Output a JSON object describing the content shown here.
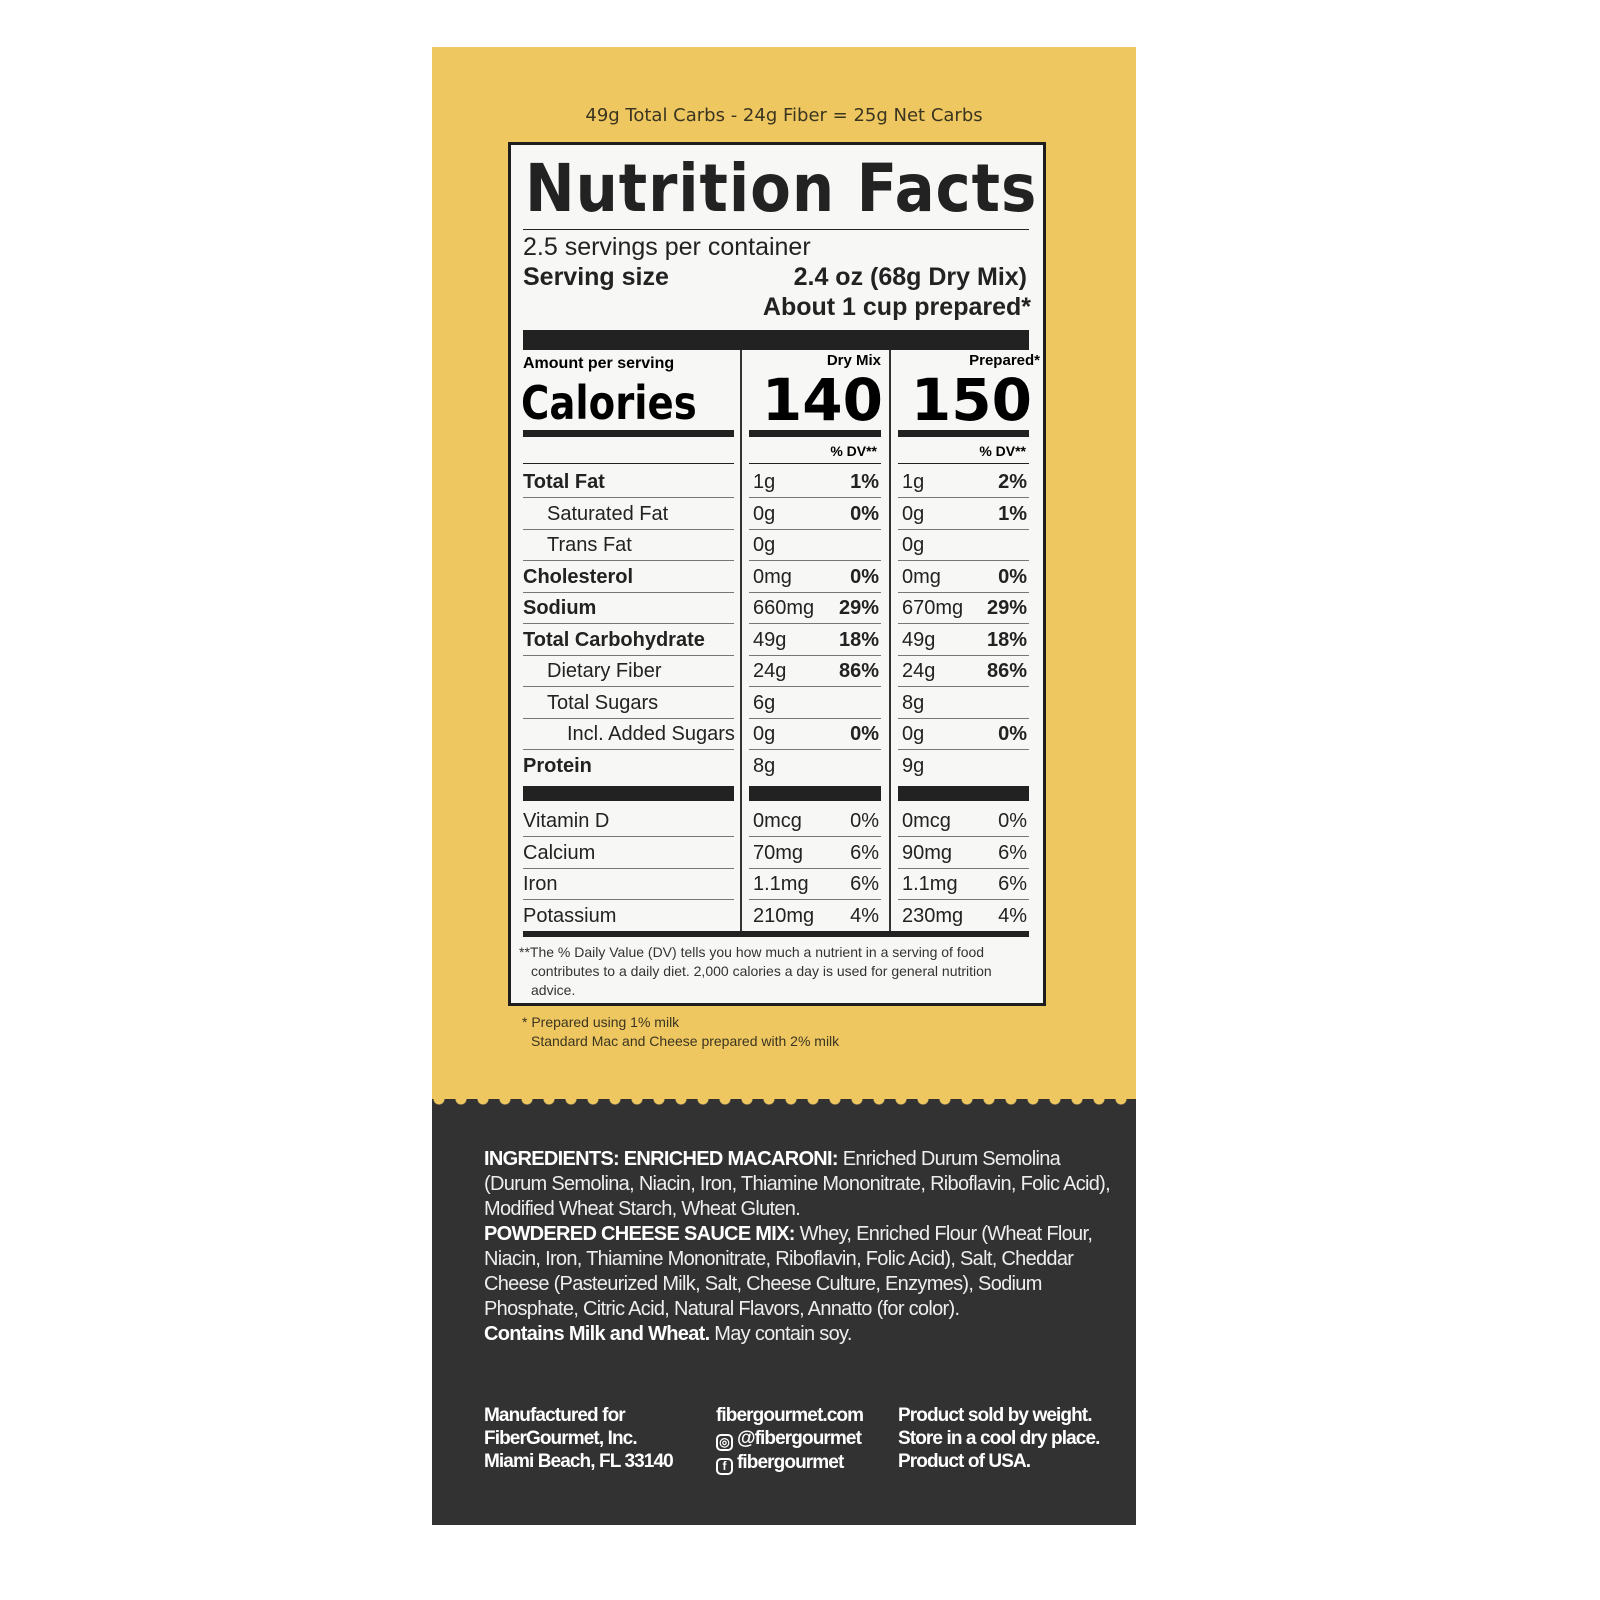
{
  "net_carbs": "49g Total Carbs - 24g Fiber = 25g Net Carbs",
  "nutrition": {
    "title": "Nutrition Facts",
    "servings": "2.5 servings per container",
    "serving_size_label": "Serving size",
    "serving_size_value": "2.4 oz (68g Dry Mix)",
    "serving_size_value2": "About 1 cup prepared*",
    "amount_per_serving": "Amount per serving",
    "calories_label": "Calories",
    "col_dry": "Dry Mix",
    "col_prepared": "Prepared*",
    "cal_dry": "140",
    "cal_prepared": "150",
    "dv_header": "% DV**",
    "rows": [
      {
        "name": "Total Fat",
        "bold": true,
        "indent": 0,
        "dry": "1g",
        "dry_dv": "1%",
        "prep": "1g",
        "prep_dv": "2%"
      },
      {
        "name": "Saturated Fat",
        "indent": 1,
        "dry": "0g",
        "dry_dv": "0%",
        "prep": "0g",
        "prep_dv": "1%"
      },
      {
        "name": "Trans Fat",
        "indent": 1,
        "dry": "0g",
        "dry_dv": "",
        "prep": "0g",
        "prep_dv": ""
      },
      {
        "name": "Cholesterol",
        "bold": true,
        "indent": 0,
        "dry": "0mg",
        "dry_dv": "0%",
        "prep": "0mg",
        "prep_dv": "0%"
      },
      {
        "name": "Sodium",
        "bold": true,
        "indent": 0,
        "dry": "660mg",
        "dry_dv": "29%",
        "prep": "670mg",
        "prep_dv": "29%"
      },
      {
        "name": "Total Carbohydrate",
        "bold": true,
        "indent": 0,
        "dry": "49g",
        "dry_dv": "18%",
        "prep": "49g",
        "prep_dv": "18%"
      },
      {
        "name": "Dietary Fiber",
        "indent": 1,
        "dry": "24g",
        "dry_dv": "86%",
        "prep": "24g",
        "prep_dv": "86%"
      },
      {
        "name": "Total Sugars",
        "indent": 1,
        "dry": "6g",
        "dry_dv": "",
        "prep": "8g",
        "prep_dv": ""
      },
      {
        "name": "Incl. Added Sugars",
        "indent": 2,
        "dry": "0g",
        "dry_dv": "0%",
        "prep": "0g",
        "prep_dv": "0%"
      },
      {
        "name": "Protein",
        "bold": true,
        "indent": 0,
        "dry": "8g",
        "dry_dv": "",
        "prep": "9g",
        "prep_dv": ""
      }
    ],
    "vitamins": [
      {
        "name": "Vitamin D",
        "dry": "0mcg",
        "dry_dv": "0%",
        "prep": "0mcg",
        "prep_dv": "0%"
      },
      {
        "name": "Calcium",
        "dry": "70mg",
        "dry_dv": "6%",
        "prep": "90mg",
        "prep_dv": "6%"
      },
      {
        "name": "Iron",
        "dry": "1.1mg",
        "dry_dv": "6%",
        "prep": "1.1mg",
        "prep_dv": "6%"
      },
      {
        "name": "Potassium",
        "dry": "210mg",
        "dry_dv": "4%",
        "prep": "230mg",
        "prep_dv": "4%"
      }
    ],
    "footnote": "**The % Daily Value (DV) tells you how much a nutrient in a serving of food contributes to a daily diet. 2,000 calories a day is used for general nutrition advice."
  },
  "notes": [
    "* Prepared using 1% milk",
    "Standard Mac and Cheese prepared with 2% milk"
  ],
  "ingredients": {
    "h1": "INGREDIENTS: ENRICHED MACARONI:",
    "t1": " Enriched Durum Semolina (Durum Semolina, Niacin, Iron, Thiamine Mononitrate, Riboflavin, Folic Acid), Modified Wheat Starch, Wheat Gluten.",
    "h2": "POWDERED CHEESE SAUCE MIX:",
    "t2": " Whey, Enriched Flour (Wheat Flour, Niacin, Iron, Thiamine Mononitrate, Riboflavin, Folic Acid), Salt, Cheddar Cheese (Pasteurized Milk, Salt, Cheese Culture, Enzymes), Sodium Phosphate, Citric Acid, Natural Flavors, Annatto (for color).",
    "h3": "Contains Milk and Wheat.",
    "t3": " May contain soy."
  },
  "footer": {
    "manufacturer": [
      "Manufactured for",
      "FiberGourmet, Inc.",
      "Miami Beach, FL 33140"
    ],
    "website": "fibergourmet.com",
    "instagram": "@fibergourmet",
    "facebook": "fibergourmet",
    "info": [
      "Product sold by weight.",
      "Store in a cool dry place.",
      "Product of USA."
    ]
  },
  "colors": {
    "panel_yellow": "#efc760",
    "panel_dark": "#323232"
  }
}
